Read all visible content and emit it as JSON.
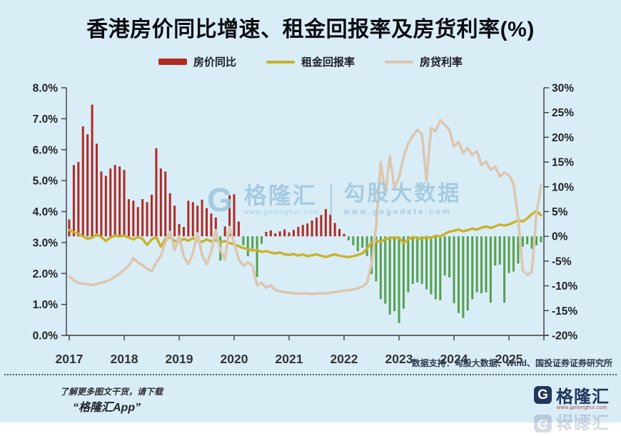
{
  "title": "香港房价同比增速、租金回报率及房货利率(%)",
  "legend": [
    {
      "label": "房价同比",
      "type": "bar",
      "color": "#B02A23"
    },
    {
      "label": "租金回报率",
      "type": "line",
      "color": "#C9B22B"
    },
    {
      "label": "房贷利率",
      "type": "line",
      "color": "#DCC7AF"
    }
  ],
  "watermark": {
    "glyph": "G",
    "brand": "格隆汇",
    "brand_url": "www.gelonghui.com",
    "product": "勾股大数据",
    "product_url": "www.gogudata.com"
  },
  "footer": {
    "support": "数据支持：勾股大数据、Wind、国投证券证券研究所",
    "promo_line1": "了解更多图文干货，请下载",
    "promo_line2": "“格隆汇App”",
    "logo_glyph": "G",
    "logo_text": "格隆汇",
    "logo_url": "www.gelonghui.com"
  },
  "colors": {
    "background": "#D9EDF7",
    "axis": "#3a3a3a",
    "axis_text": "#222222",
    "bar_positive": "#B02A23",
    "bar_negative": "#55A04E",
    "rental_line": "#C9B22B",
    "mortgage_line": "#DCC7AF"
  },
  "chart_data": {
    "type": "bar",
    "title": "香港房价同比增速、租金回报率及房货利率(%)",
    "x_start": "2017-01",
    "x_freq": "monthly",
    "x_years": [
      "2017",
      "2018",
      "2019",
      "2020",
      "2021",
      "2022",
      "2023",
      "2024",
      "2025"
    ],
    "left_axis": {
      "min": 0,
      "max": 8,
      "ticks": [
        "8.0%",
        "7.0%",
        "6.0%",
        "5.0%",
        "4.0%",
        "3.0%",
        "2.0%",
        "1.0%",
        "0.0%"
      ]
    },
    "right_axis": {
      "min": -20,
      "max": 30,
      "ticks": [
        "30%",
        "25%",
        "20%",
        "15%",
        "10%",
        "5%",
        "0%",
        "-5%",
        "-10%",
        "-15%",
        "-20%"
      ]
    },
    "grid": false,
    "legend_position": "top",
    "series": [
      {
        "name": "房价同比",
        "type": "bar",
        "axis": "right",
        "unit": "%",
        "values": [
          3.4,
          14.4,
          15.0,
          22.2,
          20.6,
          26.6,
          18.7,
          13.1,
          12.2,
          13.7,
          14.4,
          14.1,
          13.4,
          7.5,
          7.2,
          5.9,
          7.5,
          6.9,
          8.4,
          17.8,
          13.7,
          13.1,
          8.7,
          6.2,
          2.5,
          1.9,
          7.2,
          6.9,
          6.2,
          7.4,
          5.7,
          4.6,
          3.8,
          -4.9,
          2.0,
          8.3,
          8.5,
          3.0,
          -1.8,
          -4.0,
          -2.5,
          -8.2,
          -1.5,
          0.9,
          1.2,
          0.6,
          1.0,
          1.4,
          0.8,
          1.3,
          1.9,
          2.3,
          2.6,
          3.2,
          3.8,
          4.3,
          5.5,
          4.4,
          2.7,
          1.5,
          0.5,
          -0.8,
          -1.8,
          -3.0,
          -2.3,
          -4.0,
          -7.6,
          -9.1,
          -12.7,
          -13.6,
          -15.8,
          -15.1,
          -17.5,
          -14.6,
          -11.3,
          -9.6,
          -9.3,
          -9.6,
          -10.7,
          -11.7,
          -12.7,
          -12.9,
          -7.9,
          -8.3,
          -13.5,
          -15.5,
          -16.5,
          -15.0,
          -12.7,
          -11.3,
          -11.5,
          -11.3,
          -13.4,
          -5.9,
          -5.7,
          -13.4,
          -7.4,
          -7.1,
          -5.5,
          -2.1,
          -1.6,
          -2.5,
          -1.8,
          -1.2
        ]
      },
      {
        "name": "租金回报率",
        "type": "line",
        "axis": "left",
        "unit": "%",
        "values": [
          3.4,
          3.34,
          3.28,
          3.2,
          3.12,
          3.16,
          3.26,
          3.18,
          3.05,
          3.16,
          3.22,
          3.2,
          3.22,
          3.16,
          3.1,
          3.18,
          3.12,
          2.92,
          3.1,
          3.18,
          2.86,
          3.12,
          3.18,
          3.05,
          3.04,
          3.12,
          3.06,
          3.14,
          3.08,
          3.02,
          3.1,
          3.04,
          3.08,
          3.0,
          3.05,
          2.98,
          2.95,
          2.88,
          2.82,
          2.8,
          2.74,
          2.76,
          2.7,
          2.72,
          2.68,
          2.65,
          2.68,
          2.62,
          2.6,
          2.63,
          2.58,
          2.62,
          2.56,
          2.59,
          2.62,
          2.57,
          2.53,
          2.58,
          2.62,
          2.57,
          2.55,
          2.53,
          2.56,
          2.6,
          2.65,
          2.8,
          3.0,
          3.05,
          3.03,
          3.1,
          3.14,
          3.16,
          3.16,
          2.98,
          3.1,
          3.18,
          3.14,
          3.12,
          3.18,
          3.15,
          3.22,
          3.2,
          3.28,
          3.35,
          3.38,
          3.42,
          3.36,
          3.4,
          3.45,
          3.42,
          3.48,
          3.52,
          3.47,
          3.52,
          3.58,
          3.55,
          3.58,
          3.65,
          3.72,
          3.68,
          3.78,
          3.92,
          4.02,
          3.88
        ]
      },
      {
        "name": "房贷利率",
        "type": "line",
        "axis": "left",
        "unit": "%",
        "values": [
          1.9,
          1.78,
          1.7,
          1.67,
          1.65,
          1.63,
          1.66,
          1.7,
          1.74,
          1.8,
          1.9,
          2.0,
          2.12,
          2.25,
          2.5,
          2.35,
          2.27,
          2.15,
          2.07,
          2.35,
          2.57,
          3.0,
          3.34,
          2.76,
          3.2,
          2.55,
          2.3,
          2.65,
          3.3,
          2.6,
          2.3,
          2.7,
          3.4,
          2.75,
          2.45,
          3.5,
          3.0,
          2.45,
          2.25,
          2.35,
          2.25,
          1.62,
          1.7,
          1.54,
          1.62,
          1.47,
          1.42,
          1.4,
          1.38,
          1.36,
          1.35,
          1.36,
          1.35,
          1.34,
          1.35,
          1.36,
          1.35,
          1.38,
          1.4,
          1.42,
          1.45,
          1.46,
          1.48,
          1.52,
          1.58,
          1.7,
          2.32,
          3.5,
          5.6,
          4.55,
          5.8,
          4.77,
          5.1,
          5.76,
          6.2,
          6.45,
          6.64,
          6.5,
          5.0,
          6.7,
          6.6,
          6.95,
          6.8,
          6.64,
          6.1,
          6.25,
          5.9,
          6.05,
          5.84,
          5.95,
          5.5,
          5.62,
          5.34,
          5.45,
          5.14,
          5.25,
          5.18,
          4.9,
          3.8,
          2.1,
          1.95,
          2.05,
          3.9,
          4.85
        ]
      }
    ]
  }
}
